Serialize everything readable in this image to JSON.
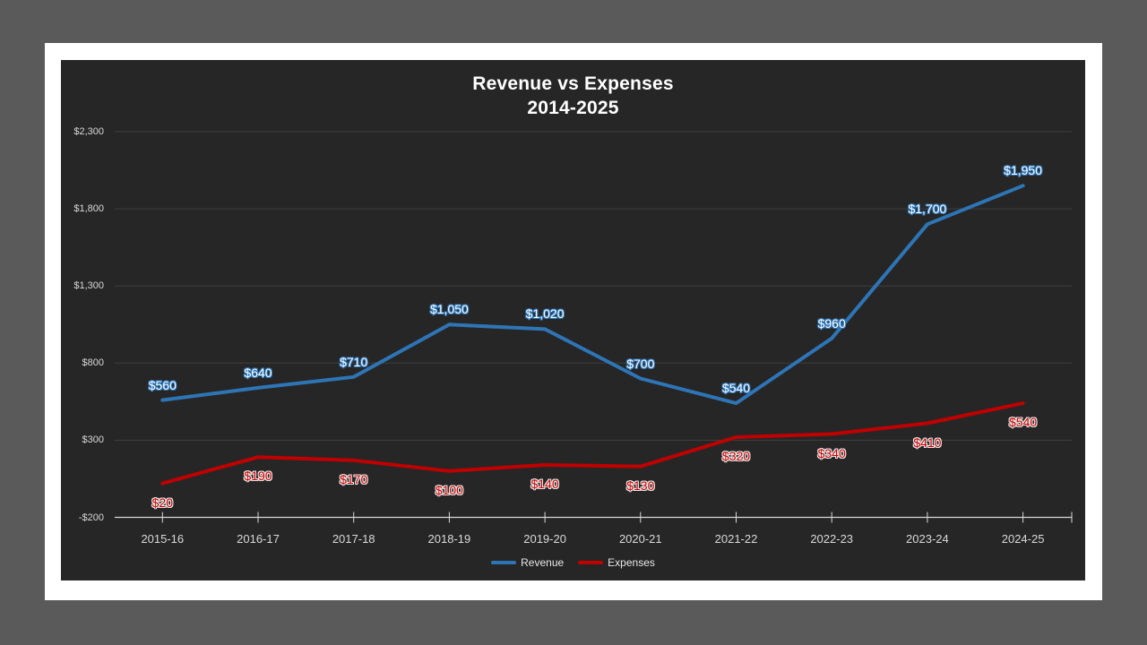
{
  "colors": {
    "canvas_background": "#5A5A5A",
    "slide_background": "#FFFFFF",
    "chart_background": "#262626",
    "gridline": "#3F3F3F",
    "axis_line": "#D9D9D9",
    "axis_text": "#D9D9D9",
    "title_text": "#FFFFFF",
    "legend_text": "#E8E8E8"
  },
  "chart_data": {
    "type": "line",
    "title": "Revenue vs Expenses",
    "subtitle": "2014-2025",
    "categories": [
      "2015-16",
      "2016-17",
      "2017-18",
      "2018-19",
      "2019-20",
      "2020-21",
      "2021-22",
      "2022-23",
      "2023-24",
      "2024-25"
    ],
    "series": [
      {
        "name": "Revenue",
        "color": "#2E75B6",
        "values": [
          560,
          640,
          710,
          1050,
          1020,
          700,
          540,
          960,
          1700,
          1950
        ],
        "point_labels": [
          "$560",
          "$640",
          "$710",
          "$1,050",
          "$1,020",
          "$700",
          "$540",
          "$960",
          "$1,700",
          "$1,950"
        ],
        "label_position": "above",
        "label_fill": "#FFFFFF",
        "label_outline": "#2E75B6"
      },
      {
        "name": "Expenses",
        "color": "#C00000",
        "values": [
          20,
          190,
          170,
          100,
          140,
          130,
          320,
          340,
          410,
          540
        ],
        "point_labels": [
          "$20",
          "$190",
          "$170",
          "$100",
          "$140",
          "$130",
          "$320",
          "$340",
          "$410",
          "$540"
        ],
        "label_position": "below",
        "label_fill": "#CC0000",
        "label_outline": "#E8E8E8"
      }
    ],
    "y_axis": {
      "min": -200,
      "max": 2300,
      "step": 500,
      "ticks": [
        {
          "value": 2300,
          "label": "$2,300"
        },
        {
          "value": 1800,
          "label": "$1,800"
        },
        {
          "value": 1300,
          "label": "$1,300"
        },
        {
          "value": 800,
          "label": "$800"
        },
        {
          "value": 300,
          "label": "$300"
        },
        {
          "value": -200,
          "label": "-$200"
        }
      ]
    },
    "grid": true,
    "legend_position": "bottom"
  }
}
